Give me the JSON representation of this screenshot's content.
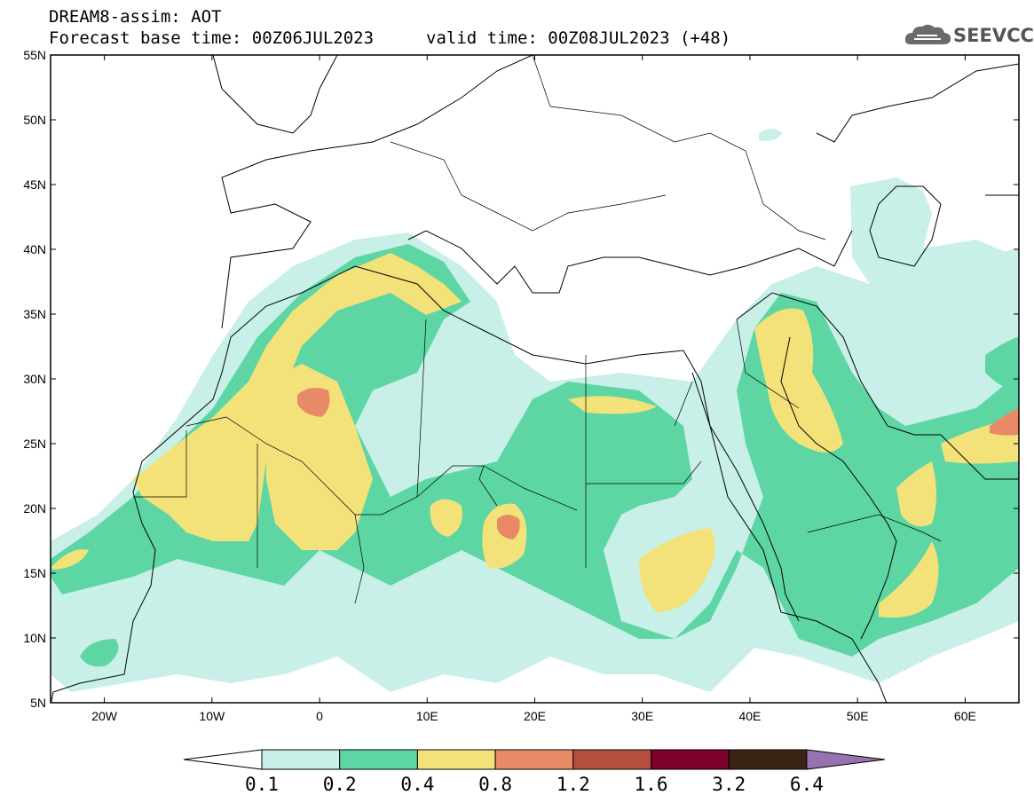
{
  "header": {
    "line1": "DREAM8-assim: AOT",
    "line2": "Forecast base time: 00Z06JUL2023",
    "valid": "valid time: 00Z08JUL2023 (+48)"
  },
  "logo": {
    "text": "SEEVCCC",
    "icon": "cloud-icon"
  },
  "map": {
    "lat_labels": [
      "55N",
      "50N",
      "45N",
      "40N",
      "35N",
      "30N",
      "25N",
      "20N",
      "15N",
      "10N",
      "5N"
    ],
    "lon_labels": [
      "20W",
      "10W",
      "0",
      "10E",
      "20E",
      "30E",
      "40E",
      "50E",
      "60E"
    ],
    "lat_range": [
      5,
      55
    ],
    "lon_range": [
      -25,
      65
    ]
  },
  "colorbar": {
    "labels": [
      "0.1",
      "0.2",
      "0.4",
      "0.8",
      "1.2",
      "1.6",
      "3.2",
      "6.4"
    ],
    "colors": [
      "#ffffff",
      "#c8f0e8",
      "#5dd6a4",
      "#f3e27a",
      "#e88a68",
      "#b5503f",
      "#7d0028",
      "#3b2414",
      "#9673b0"
    ]
  }
}
